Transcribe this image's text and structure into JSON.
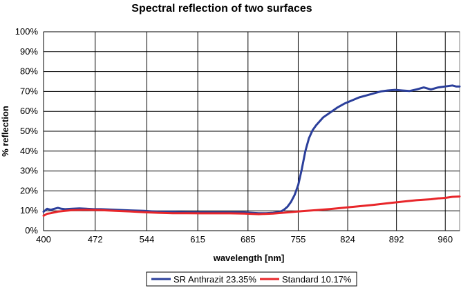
{
  "chart_data": {
    "type": "line",
    "title": "Spectral reflection of two surfaces",
    "xlabel": "wavelength  [nm]",
    "ylabel": "% reflection",
    "xlim": [
      400,
      980
    ],
    "ylim": [
      0,
      100
    ],
    "x_ticks": [
      "400",
      "472",
      "544",
      "615",
      "685",
      "755",
      "824",
      "892",
      "960"
    ],
    "x_tick_values": [
      400,
      472,
      544,
      615,
      685,
      755,
      824,
      892,
      960
    ],
    "y_ticks": [
      "0%",
      "10%",
      "20%",
      "30%",
      "40%",
      "50%",
      "60%",
      "70%",
      "80%",
      "90%",
      "100%"
    ],
    "y_tick_values": [
      0,
      10,
      20,
      30,
      40,
      50,
      60,
      70,
      80,
      90,
      100
    ],
    "grid": true,
    "legend_position": "bottom",
    "series": [
      {
        "name": "SR Anthrazit 23.35%",
        "color": "#2b3f9b",
        "x": [
          400,
          405,
          410,
          415,
          420,
          425,
          430,
          440,
          450,
          460,
          470,
          480,
          500,
          520,
          540,
          560,
          580,
          600,
          620,
          640,
          660,
          680,
          700,
          710,
          720,
          730,
          735,
          740,
          745,
          750,
          755,
          760,
          765,
          770,
          775,
          780,
          790,
          800,
          810,
          820,
          830,
          840,
          850,
          860,
          870,
          880,
          890,
          900,
          910,
          920,
          930,
          940,
          950,
          960,
          970,
          975,
          980
        ],
        "y": [
          9.5,
          11,
          10.5,
          11,
          11.5,
          11,
          10.8,
          11,
          11.2,
          11,
          10.8,
          10.8,
          10.5,
          10.2,
          10,
          9.5,
          9.5,
          9.3,
          9.2,
          9.2,
          9.2,
          9.2,
          8.8,
          8.8,
          9,
          9.5,
          10.5,
          12,
          14.5,
          18,
          23,
          31,
          40,
          46.5,
          50.5,
          53,
          57,
          59.5,
          62,
          64,
          65.5,
          67,
          68,
          69,
          70,
          70.5,
          70.8,
          70.5,
          70.2,
          71,
          72,
          71,
          72,
          72.5,
          73,
          72.5,
          72.5
        ]
      },
      {
        "name": "Standard 10.17%",
        "color": "#e8262a",
        "x": [
          400,
          405,
          410,
          415,
          420,
          430,
          440,
          450,
          460,
          480,
          500,
          520,
          540,
          560,
          580,
          600,
          620,
          640,
          660,
          680,
          700,
          720,
          740,
          760,
          780,
          800,
          820,
          840,
          860,
          880,
          900,
          920,
          940,
          950,
          960,
          970,
          980
        ],
        "y": [
          7.5,
          8.5,
          8.8,
          9.2,
          9.6,
          10,
          10.3,
          10.4,
          10.5,
          10.3,
          10,
          9.7,
          9.3,
          9,
          8.8,
          8.8,
          8.7,
          8.7,
          8.7,
          8.6,
          8.3,
          8.6,
          9.2,
          9.8,
          10.3,
          10.9,
          11.6,
          12.3,
          13,
          13.8,
          14.6,
          15.3,
          15.8,
          16.2,
          16.5,
          17,
          17.2
        ]
      }
    ]
  }
}
